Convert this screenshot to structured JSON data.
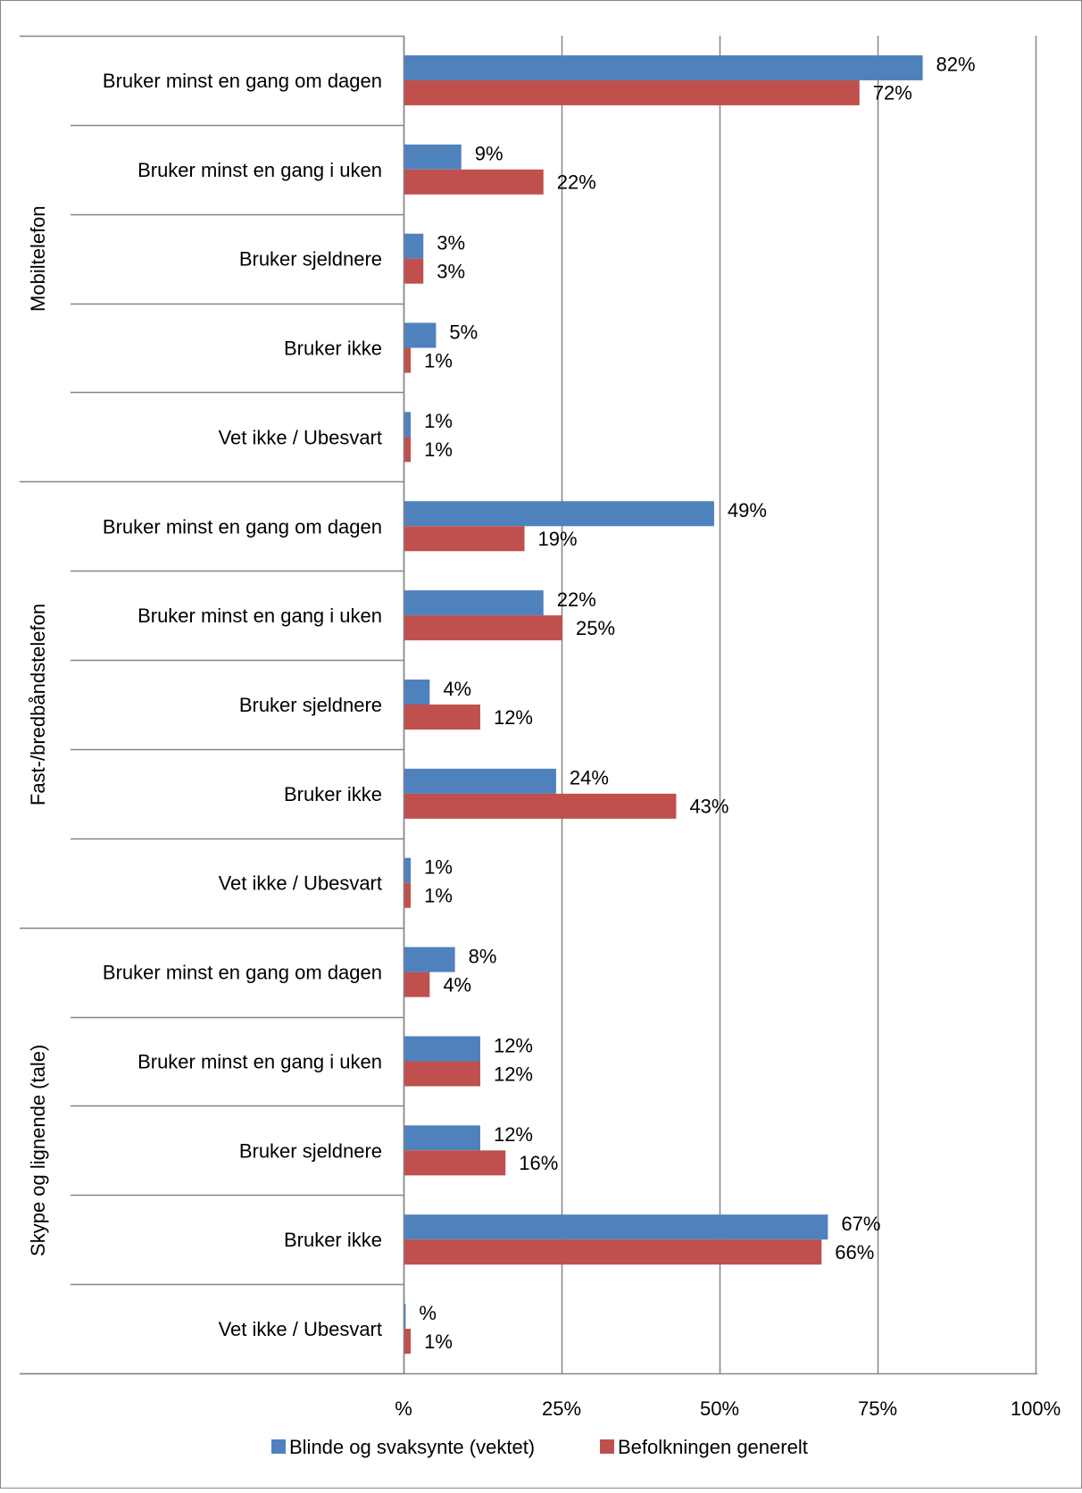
{
  "chart_data": {
    "type": "bar",
    "orientation": "horizontal",
    "title": "",
    "xlabel": "",
    "ylabel": "",
    "xlim": [
      0,
      100
    ],
    "x_ticks": [
      {
        "value": 0,
        "label": "%"
      },
      {
        "value": 25,
        "label": "25%"
      },
      {
        "value": 50,
        "label": "50%"
      },
      {
        "value": 75,
        "label": "75%"
      },
      {
        "value": 100,
        "label": "100%"
      }
    ],
    "grid": true,
    "legend_position": "bottom",
    "groups": [
      {
        "name": "Mobiltelefon",
        "categories": [
          "Bruker minst en gang om dagen",
          "Bruker minst en gang i uken",
          "Bruker sjeldnere",
          "Bruker ikke",
          "Vet ikke / Ubesvart"
        ]
      },
      {
        "name": "Fast-/bredbåndstelefon",
        "categories": [
          "Bruker minst en gang om dagen",
          "Bruker minst en gang i uken",
          "Bruker sjeldnere",
          "Bruker ikke",
          "Vet ikke / Ubesvart"
        ]
      },
      {
        "name": "Skype og lignende (tale)",
        "categories": [
          "Bruker minst en gang om dagen",
          "Bruker minst en gang i uken",
          "Bruker sjeldnere",
          "Bruker ikke",
          "Vet ikke / Ubesvart"
        ]
      }
    ],
    "series": [
      {
        "name": "Blinde og svaksynte (vektet)",
        "color": "#4F81BD",
        "values": [
          82,
          9,
          3,
          5,
          1,
          49,
          22,
          4,
          24,
          1,
          8,
          12,
          12,
          67,
          0.2
        ],
        "labels": [
          "82%",
          "9%",
          "3%",
          "5%",
          "1%",
          "49%",
          "22%",
          "4%",
          "24%",
          "1%",
          "8%",
          "12%",
          "12%",
          "67%",
          "%"
        ]
      },
      {
        "name": "Befolkningen generelt",
        "color": "#C0504D",
        "values": [
          72,
          22,
          3,
          1,
          1,
          19,
          25,
          12,
          43,
          1,
          4,
          12,
          16,
          66,
          1
        ],
        "labels": [
          "72%",
          "22%",
          "3%",
          "1%",
          "1%",
          "19%",
          "25%",
          "12%",
          "43%",
          "1%",
          "4%",
          "12%",
          "16%",
          "66%",
          "1%"
        ]
      }
    ]
  }
}
